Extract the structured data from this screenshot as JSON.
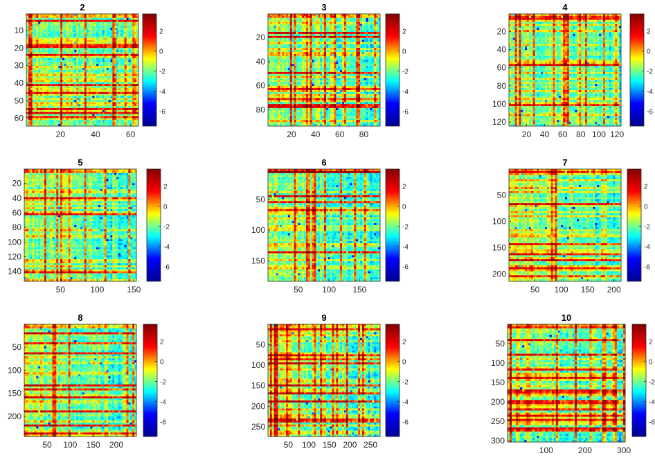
{
  "colors": {
    "colormap": [
      "#00008f",
      "#0000ff",
      "#00ffff",
      "#ffff00",
      "#ff0000",
      "#800000"
    ],
    "axis": "#262626",
    "background": "#ffffff"
  },
  "chart_data": [
    {
      "type": "heatmap",
      "title": "2",
      "n": 64,
      "xlabel": "",
      "ylabel": "",
      "xticks": [
        20,
        40,
        60
      ],
      "yticks": [
        10,
        20,
        30,
        40,
        50,
        60
      ],
      "colorbar": {
        "range": [
          -7.5,
          3.7
        ],
        "ticks": [
          2,
          0,
          -2,
          -4,
          -6
        ]
      }
    },
    {
      "type": "heatmap",
      "title": "3",
      "n": 93,
      "xlabel": "",
      "ylabel": "",
      "xticks": [
        20,
        40,
        60,
        80
      ],
      "yticks": [
        20,
        40,
        60,
        80
      ],
      "colorbar": {
        "range": [
          -7.5,
          3.7
        ],
        "ticks": [
          2,
          0,
          -2,
          -4,
          -6
        ]
      }
    },
    {
      "type": "heatmap",
      "title": "4",
      "n": 124,
      "xlabel": "",
      "ylabel": "",
      "xticks": [
        20,
        40,
        60,
        80,
        100,
        120
      ],
      "yticks": [
        20,
        40,
        60,
        80,
        100,
        120
      ],
      "colorbar": {
        "range": [
          -7.5,
          3.7
        ],
        "ticks": [
          2,
          0,
          -2,
          -4,
          -6
        ]
      }
    },
    {
      "type": "heatmap",
      "title": "5",
      "n": 153,
      "xlabel": "",
      "ylabel": "",
      "xticks": [
        50,
        100,
        150
      ],
      "yticks": [
        20,
        40,
        60,
        80,
        100,
        120,
        140
      ],
      "colorbar": {
        "range": [
          -7.5,
          3.7
        ],
        "ticks": [
          2,
          0,
          -2,
          -4,
          -6
        ]
      }
    },
    {
      "type": "heatmap",
      "title": "6",
      "n": 183,
      "xlabel": "",
      "ylabel": "",
      "xticks": [
        50,
        100,
        150
      ],
      "yticks": [
        50,
        100,
        150
      ],
      "colorbar": {
        "range": [
          -7.5,
          3.7
        ],
        "ticks": [
          2,
          0,
          -2,
          -4,
          -6
        ]
      }
    },
    {
      "type": "heatmap",
      "title": "7",
      "n": 213,
      "xlabel": "",
      "ylabel": "",
      "xticks": [
        50,
        100,
        150,
        200
      ],
      "yticks": [
        50,
        100,
        150,
        200
      ],
      "colorbar": {
        "range": [
          -7.5,
          3.7
        ],
        "ticks": [
          2,
          0,
          -2,
          -4,
          -6
        ]
      }
    },
    {
      "type": "heatmap",
      "title": "8",
      "n": 243,
      "xlabel": "",
      "ylabel": "",
      "xticks": [
        50,
        100,
        150,
        200
      ],
      "yticks": [
        50,
        100,
        150,
        200
      ],
      "colorbar": {
        "range": [
          -7.5,
          3.7
        ],
        "ticks": [
          2,
          0,
          -2,
          -4,
          -6
        ]
      }
    },
    {
      "type": "heatmap",
      "title": "9",
      "n": 273,
      "xlabel": "",
      "ylabel": "",
      "xticks": [
        50,
        100,
        150,
        200,
        250
      ],
      "yticks": [
        50,
        100,
        150,
        200,
        250
      ],
      "colorbar": {
        "range": [
          -7.5,
          3.7
        ],
        "ticks": [
          2,
          0,
          -2,
          -4,
          -6
        ]
      }
    },
    {
      "type": "heatmap",
      "title": "10",
      "n": 303,
      "xlabel": "",
      "ylabel": "",
      "xticks": [
        100,
        200,
        300
      ],
      "yticks": [
        50,
        100,
        150,
        200,
        250,
        300
      ],
      "colorbar": {
        "range": [
          -7.5,
          3.7
        ],
        "ticks": [
          2,
          0,
          -2,
          -4,
          -6
        ]
      }
    }
  ]
}
